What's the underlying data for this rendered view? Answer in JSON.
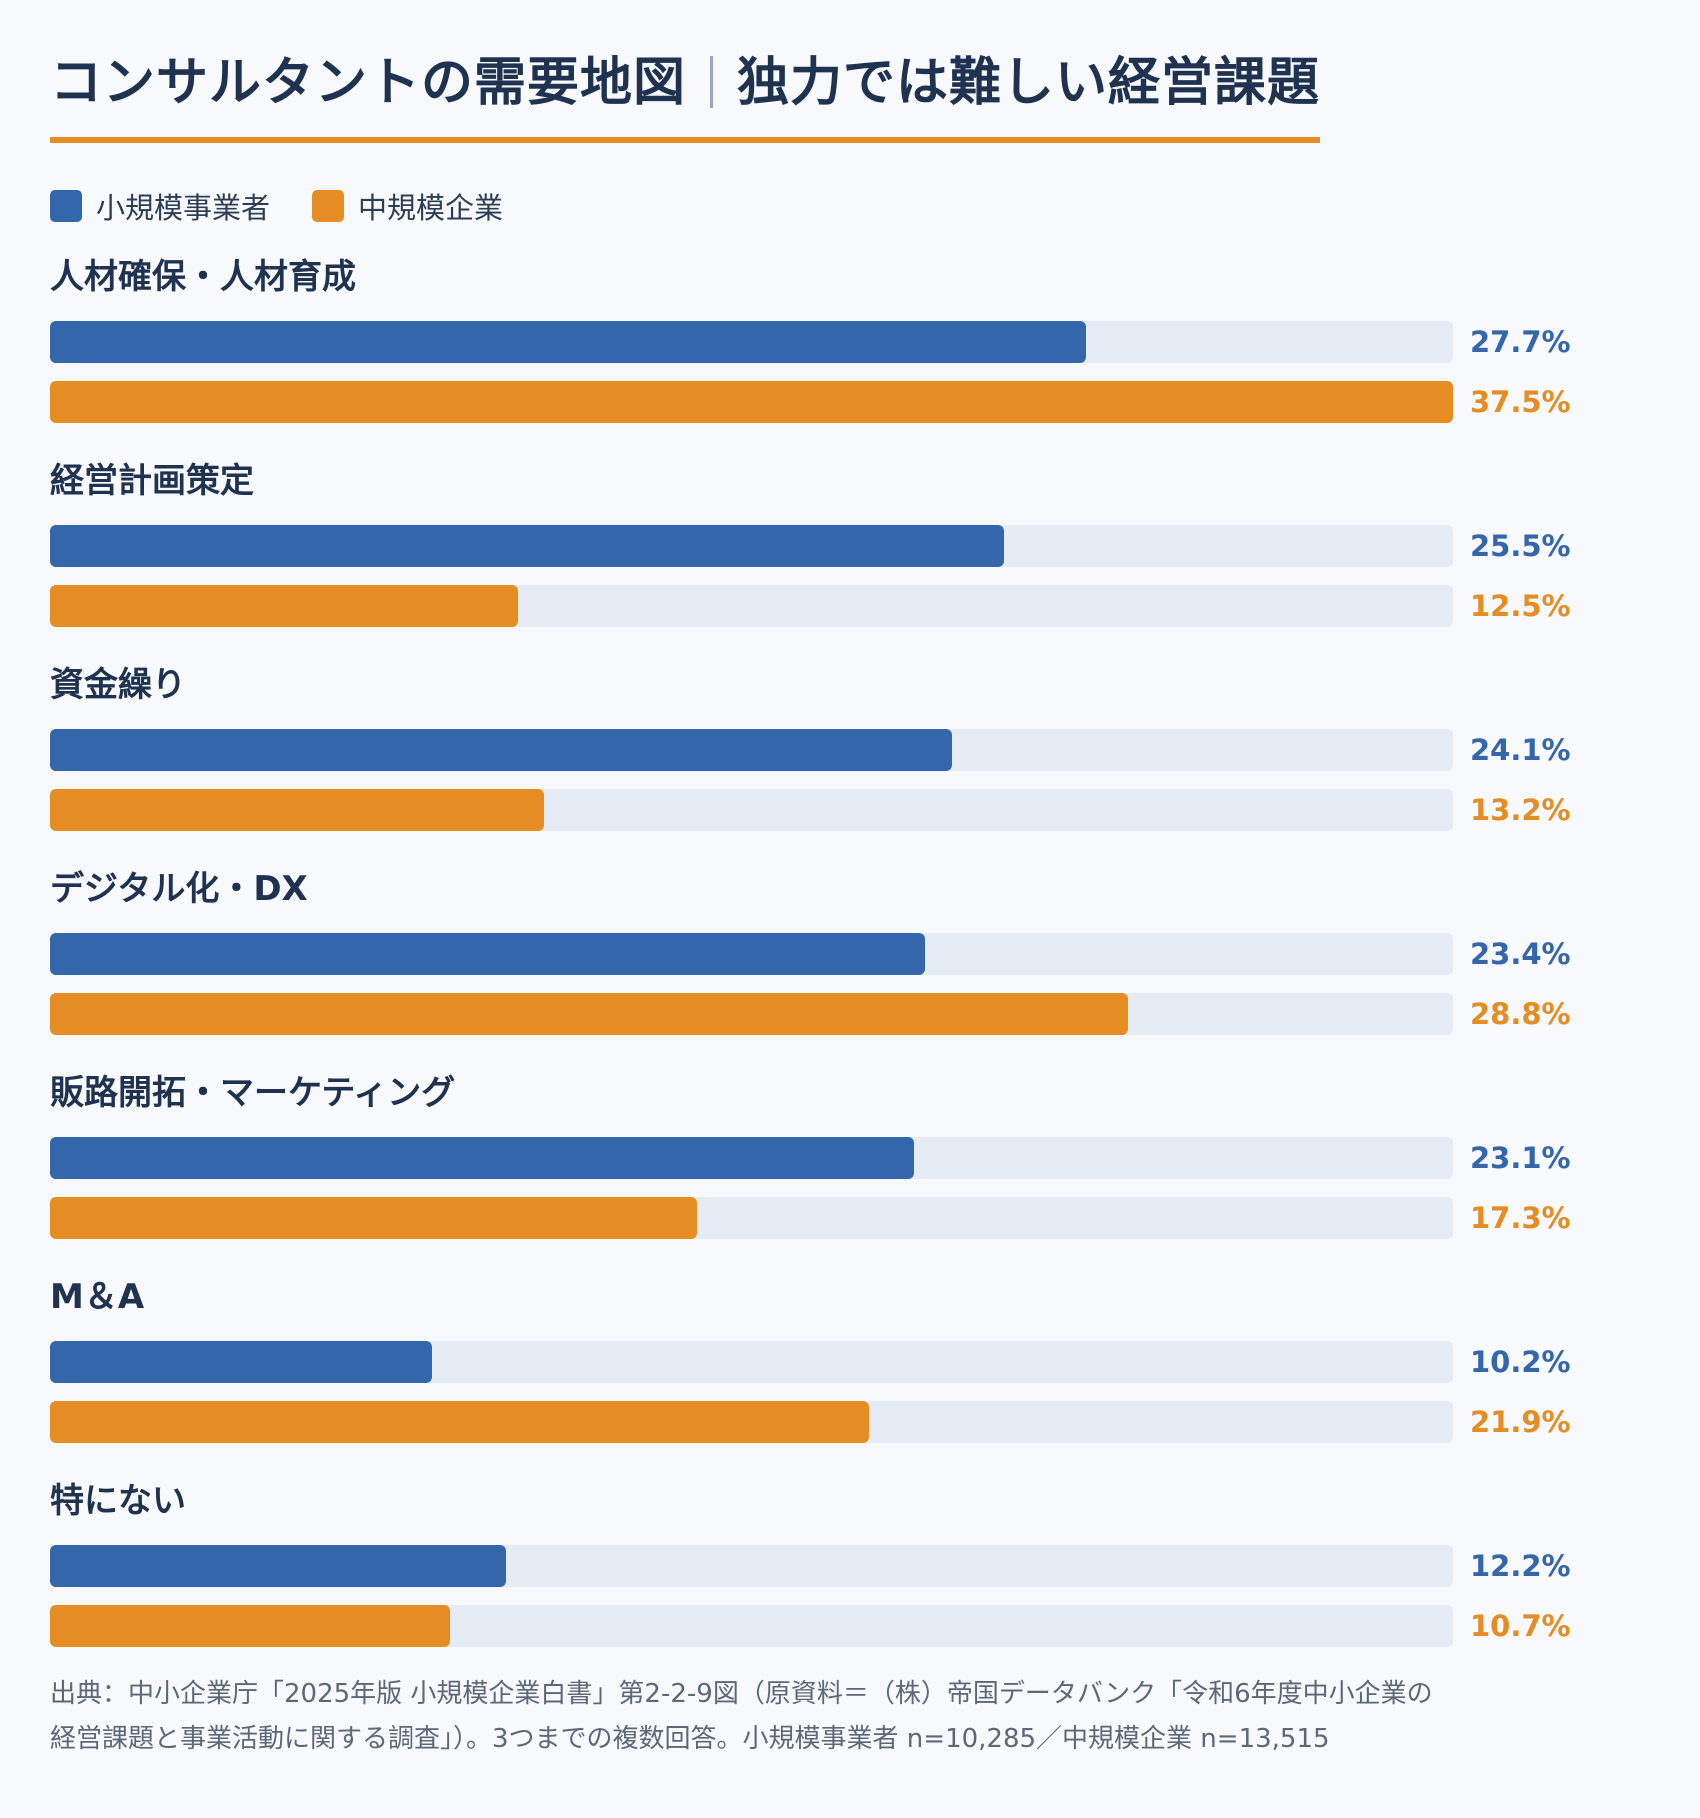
{
  "title_main": "コンサルタントの需要地図",
  "title_sub": "独力では難しい経営課題",
  "colors": {
    "small": "#3466ab",
    "medium": "#e58c22",
    "track": "#e6ecf5"
  },
  "chart_data": {
    "type": "bar",
    "orientation": "horizontal",
    "xlim": [
      0,
      37.5
    ],
    "unit": "%",
    "categories": [
      "人材確保・人材育成",
      "経営計画策定",
      "資金繰り",
      "デジタル化・DX",
      "販路開拓・マーケティング",
      "M＆A",
      "特にない"
    ],
    "series": [
      {
        "name": "小規模事業者",
        "color": "#3466ab",
        "values": [
          27.7,
          25.5,
          24.1,
          23.4,
          23.1,
          10.2,
          12.2
        ],
        "labels": [
          "27.7%",
          "25.5%",
          "24.1%",
          "23.4%",
          "23.1%",
          "10.2%",
          "12.2%"
        ]
      },
      {
        "name": "中規模企業",
        "color": "#e58c22",
        "values": [
          37.5,
          12.5,
          13.2,
          28.8,
          17.3,
          21.9,
          10.7
        ],
        "labels": [
          "37.5%",
          "12.5%",
          "13.2%",
          "28.8%",
          "17.3%",
          "21.9%",
          "10.7%"
        ]
      }
    ],
    "legend_position": "top-left",
    "grid": false
  },
  "source_line1": "出典：中小企業庁「2025年版 小規模企業白書」第2-2-9図（原資料＝（株）帝国データバンク「令和6年度中小企業の",
  "source_line2": "経営課題と事業活動に関する調査」）。3つまでの複数回答。小規模事業者 n=10,285／中規模企業 n=13,515"
}
